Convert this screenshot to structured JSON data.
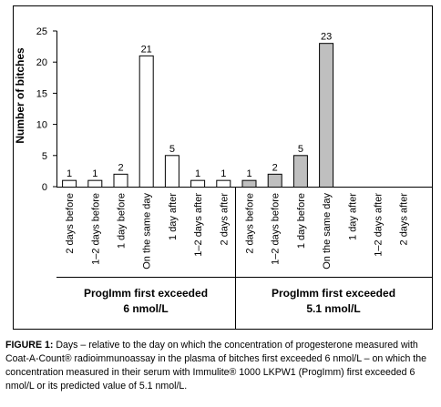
{
  "chart_data": {
    "type": "bar",
    "ylabel": "Number of bitches",
    "ylim": [
      0,
      25
    ],
    "yticks": [
      0,
      5,
      10,
      15,
      20,
      25
    ],
    "grid": false,
    "groups": [
      {
        "label_line1": "ProgImm first exceeded",
        "label_line2": "6 nmol/L",
        "color": "#ffffff",
        "categories": [
          "2 days before",
          "1–2 days before",
          "1 day before",
          "On the same day",
          "1 day after",
          "1–2 days after",
          "2 days after"
        ],
        "values": [
          1,
          1,
          2,
          21,
          5,
          1,
          1
        ],
        "data_labels": [
          "1",
          "1",
          "2",
          "21",
          "5",
          "1",
          "1"
        ]
      },
      {
        "label_line1": "ProgImm first exceeded",
        "label_line2": "5.1 nmol/L",
        "color": "#bfbfbf",
        "categories": [
          "2 days before",
          "1–2 days before",
          "1 day before",
          "On the same day",
          "1 day after",
          "1–2 days after",
          "2 days after"
        ],
        "values": [
          1,
          2,
          5,
          23,
          0,
          0,
          0
        ],
        "data_labels": [
          "1",
          "2",
          "5",
          "23",
          "",
          "",
          ""
        ]
      }
    ]
  },
  "caption": {
    "label": "FIGURE 1:",
    "text": " Days – relative to the day on which the concentration of progesterone measured with Coat-A-Count® radioimmunoassay in the plasma of bitches first exceeded 6 nmol/L – on which the concentration measured in their serum with Immulite® 1000 LKPW1 (ProgImm) first exceeded 6 nmol/L or its predicted value of 5.1 nmol/L."
  }
}
